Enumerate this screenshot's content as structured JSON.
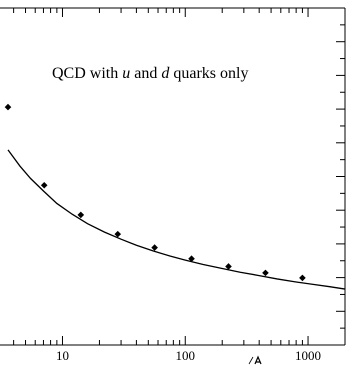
{
  "chart_data": {
    "type": "scatter",
    "title": "",
    "xlabel": "",
    "ylabel": "",
    "x_scale": "log",
    "xlim": [
      3.6,
      2000
    ],
    "ylim": [
      0,
      1
    ],
    "grid": false,
    "x_tick_labels": [
      "10",
      "100",
      "1000"
    ],
    "annotation": {
      "prefix": "QCD with ",
      "u": "u",
      "and": " and ",
      "d": "d",
      "suffix": " quarks only"
    },
    "series": [
      {
        "type": "scatter",
        "marker": "diamond",
        "x": [
          3.6,
          7.1,
          14.1,
          28.2,
          56.3,
          112.5,
          225,
          450,
          900
        ],
        "y": [
          0.706,
          0.474,
          0.386,
          0.329,
          0.289,
          0.256,
          0.233,
          0.214,
          0.199
        ]
      },
      {
        "type": "line",
        "x": [
          3.6,
          4.5,
          5.5,
          7,
          9,
          12,
          16,
          22,
          30,
          40,
          55,
          75,
          100,
          140,
          200,
          280,
          400,
          560,
          800,
          1100,
          1500,
          2000
        ],
        "y": [
          0.579,
          0.531,
          0.494,
          0.457,
          0.42,
          0.388,
          0.36,
          0.335,
          0.314,
          0.296,
          0.279,
          0.264,
          0.252,
          0.239,
          0.227,
          0.216,
          0.206,
          0.196,
          0.187,
          0.18,
          0.173,
          0.166
        ]
      }
    ]
  }
}
